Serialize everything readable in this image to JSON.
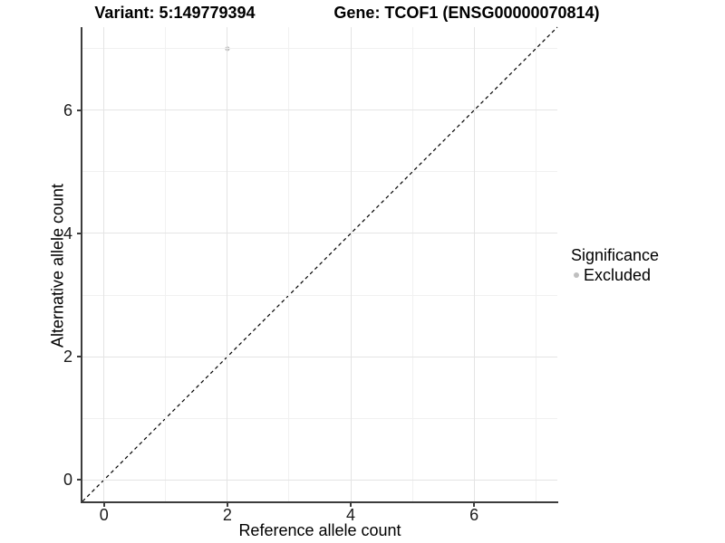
{
  "titles": {
    "left": "Variant: 5:149779394",
    "right": "Gene: TCOF1 (ENSG00000070814)"
  },
  "legend": {
    "title": "Significance",
    "items": [
      {
        "label": "Excluded",
        "color": "#bfbfbf"
      }
    ]
  },
  "chart_data": {
    "type": "scatter",
    "title_left": "Variant: 5:149779394",
    "title_right": "Gene: TCOF1 (ENSG00000070814)",
    "xlabel": "Reference allele count",
    "ylabel": "Alternative allele count",
    "xlim": [
      -0.35,
      7.35
    ],
    "ylim": [
      -0.35,
      7.35
    ],
    "x_major_ticks": [
      0,
      2,
      4,
      6
    ],
    "y_major_ticks": [
      0,
      2,
      4,
      6
    ],
    "x_minor_ticks": [
      1,
      3,
      5,
      7
    ],
    "y_minor_ticks": [
      1,
      3,
      5,
      7
    ],
    "grid": true,
    "legend_position": "right",
    "identity_line": {
      "type": "abline",
      "slope": 1,
      "intercept": 0,
      "style": "dashed",
      "color": "#000000"
    },
    "series": [
      {
        "name": "Excluded",
        "color": "#bfbfbf",
        "point_radius": 2.6,
        "points": [
          {
            "x": 2,
            "y": 7
          }
        ]
      }
    ],
    "colors": {
      "major_grid": "#e4e4e4",
      "minor_grid": "#f1f1f1",
      "axis_line": "#3c3c3c",
      "tick_text": "#1a1a1a",
      "background": "#ffffff"
    }
  }
}
